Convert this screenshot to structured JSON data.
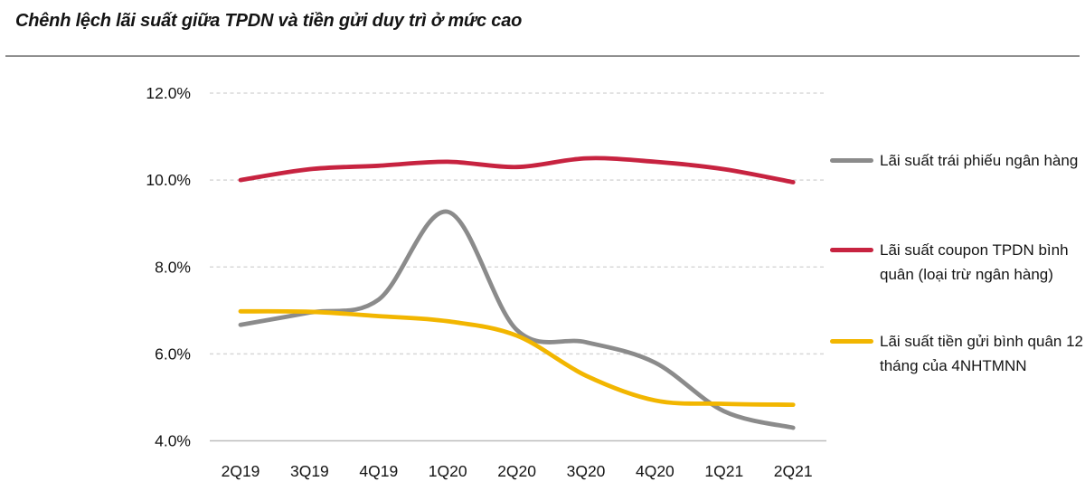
{
  "chart_data": {
    "type": "line",
    "title": "Chênh lệch lãi suất giữa TPDN và tiền gửi duy trì ở mức cao",
    "categories": [
      "2Q19",
      "3Q19",
      "4Q19",
      "1Q20",
      "2Q20",
      "3Q20",
      "4Q20",
      "1Q21",
      "2Q21"
    ],
    "series": [
      {
        "name": "Lãi suất trái phiếu ngân hàng",
        "color": "#8b8b8b",
        "values": [
          6.67,
          6.95,
          7.25,
          9.27,
          6.55,
          6.27,
          5.8,
          4.68,
          4.3
        ]
      },
      {
        "name": "Lãi suất coupon TPDN bình quân (loại trừ ngân hàng)",
        "color": "#c72340",
        "values": [
          10.0,
          10.25,
          10.33,
          10.42,
          10.3,
          10.5,
          10.42,
          10.25,
          9.95
        ]
      },
      {
        "name": "Lãi suất tiền gửi bình quân 12 tháng của 4NHTMNN",
        "color": "#f2b600",
        "values": [
          6.98,
          6.97,
          6.87,
          6.75,
          6.42,
          5.5,
          4.93,
          4.85,
          4.83
        ]
      }
    ],
    "ylim": [
      4,
      12
    ],
    "yticks": [
      {
        "value": 12,
        "label": "12.0%"
      },
      {
        "value": 10,
        "label": "10.0%"
      },
      {
        "value": 8,
        "label": "8.0%"
      },
      {
        "value": 6,
        "label": "6.0%"
      },
      {
        "value": 4,
        "label": "4.0%"
      }
    ],
    "grid": "horizontal-dashed",
    "legend_position": "right"
  },
  "legend": {
    "items": [
      {
        "label": "Lãi suất trái phiếu ngân hàng",
        "color": "#8b8b8b"
      },
      {
        "label": "Lãi suất coupon TPDN bình\nquân (loại trừ ngân hàng)",
        "color": "#c72340"
      },
      {
        "label": "Lãi suất tiền gửi bình quân 12\ntháng của 4NHTMNN",
        "color": "#f2b600"
      }
    ]
  },
  "colors": {
    "grid": "#d8d8d8",
    "axis": "#bdbdbd",
    "divider": "#8f8f8f",
    "text": "#141414"
  }
}
